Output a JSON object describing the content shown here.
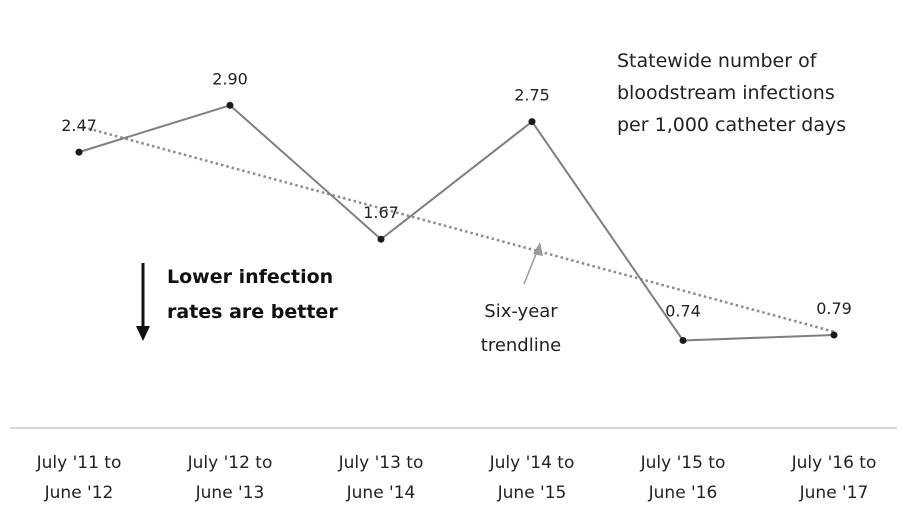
{
  "chart_data": {
    "type": "line",
    "title_lines": [
      "Statewide number of",
      "bloodstream infections",
      "per 1,000 catheter days"
    ],
    "categories": [
      [
        "July '11 to",
        "June '12"
      ],
      [
        "July '12 to",
        "June '13"
      ],
      [
        "July '13 to",
        "June '14"
      ],
      [
        "July '14 to",
        "June '15"
      ],
      [
        "July '15 to",
        "June '16"
      ],
      [
        "July '16 to",
        "June '17"
      ]
    ],
    "series": [
      {
        "values": [
          2.47,
          2.9,
          1.67,
          2.75,
          0.74,
          0.79
        ],
        "labels": [
          "2.47",
          "2.90",
          "1.67",
          "2.75",
          "0.74",
          "0.79"
        ],
        "color": "#7f7f7f"
      }
    ],
    "trendline": {
      "label_lines": [
        "Six-year",
        "trendline"
      ],
      "start": 2.7,
      "end": 0.82,
      "style": "dotted",
      "color": "#8c8c8c"
    },
    "annotation": {
      "lines": [
        "Lower infection",
        "rates are better"
      ],
      "arrow": "down"
    },
    "ylim": [
      0,
      3.5
    ],
    "grid": false,
    "legend": "none"
  }
}
